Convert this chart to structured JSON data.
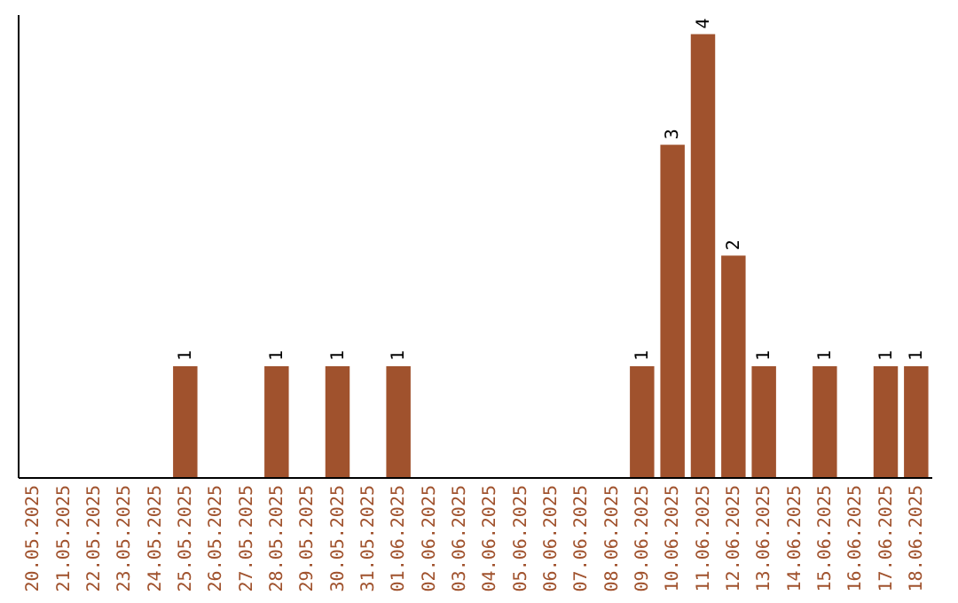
{
  "chart_data": {
    "type": "bar",
    "categories": [
      "20.05.2025",
      "21.05.2025",
      "22.05.2025",
      "23.05.2025",
      "24.05.2025",
      "25.05.2025",
      "26.05.2025",
      "27.05.2025",
      "28.05.2025",
      "29.05.2025",
      "30.05.2025",
      "31.05.2025",
      "01.06.2025",
      "02.06.2025",
      "03.06.2025",
      "04.06.2025",
      "05.06.2025",
      "06.06.2025",
      "07.06.2025",
      "08.06.2025",
      "09.06.2025",
      "10.06.2025",
      "11.06.2025",
      "12.06.2025",
      "13.06.2025",
      "14.06.2025",
      "15.06.2025",
      "16.06.2025",
      "17.06.2025",
      "18.06.2025"
    ],
    "values": [
      0,
      0,
      0,
      0,
      0,
      1,
      0,
      0,
      1,
      0,
      1,
      0,
      1,
      0,
      0,
      0,
      0,
      0,
      0,
      0,
      1,
      3,
      4,
      2,
      1,
      0,
      1,
      0,
      1,
      1
    ],
    "value_labels": [
      null,
      null,
      null,
      null,
      null,
      "1",
      null,
      null,
      "1",
      null,
      "1",
      null,
      "1",
      null,
      null,
      null,
      null,
      null,
      null,
      null,
      "1",
      "3",
      "4",
      "2",
      "1",
      null,
      "1",
      null,
      "1",
      "1"
    ],
    "color": "#a0522d",
    "tick_labels": "x"
  }
}
